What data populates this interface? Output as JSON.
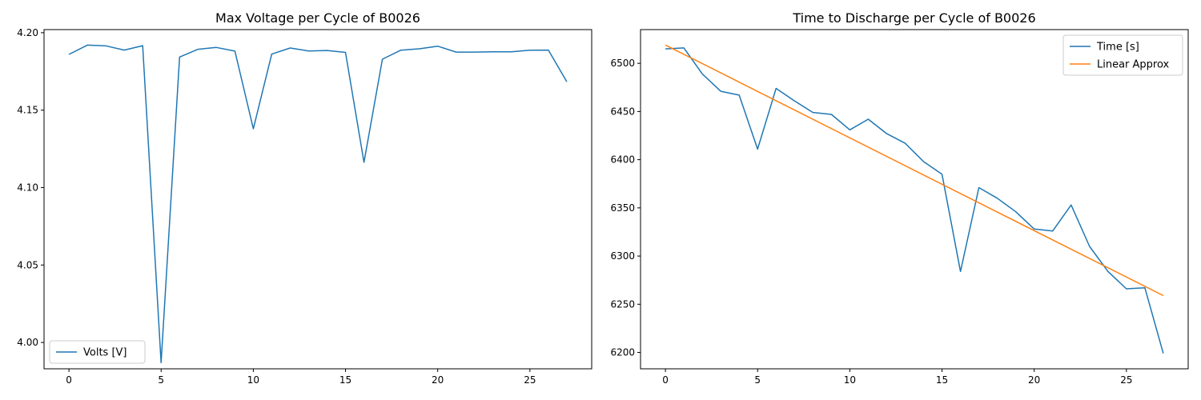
{
  "chart_data": [
    {
      "type": "line",
      "title": "Max Voltage per Cycle of B0026",
      "xlabel": "",
      "ylabel": "",
      "xlim": [
        -1.35,
        28.35
      ],
      "ylim": [
        3.983,
        4.202
      ],
      "xticks": [
        0,
        5,
        10,
        15,
        20,
        25
      ],
      "yticks": [
        4.0,
        4.05,
        4.1,
        4.15,
        4.2
      ],
      "ytick_labels": [
        "4.00",
        "4.05",
        "4.10",
        "4.15",
        "4.20"
      ],
      "grid": false,
      "legend_position": "lower left",
      "series": [
        {
          "name": "Volts [V]",
          "color": "#1f77b4",
          "x": [
            0,
            1,
            2,
            3,
            4,
            5,
            6,
            7,
            8,
            9,
            10,
            11,
            12,
            13,
            14,
            15,
            16,
            17,
            18,
            19,
            20,
            21,
            22,
            23,
            24,
            25,
            26,
            27
          ],
          "y": [
            4.186,
            4.192,
            4.1915,
            4.1888,
            4.1916,
            3.987,
            4.1843,
            4.1893,
            4.1905,
            4.1881,
            4.138,
            4.1862,
            4.1901,
            4.1882,
            4.1885,
            4.1873,
            4.1163,
            4.1829,
            4.1887,
            4.1896,
            4.1913,
            4.1875,
            4.1875,
            4.1877,
            4.1877,
            4.1887,
            4.1888,
            4.1684
          ]
        }
      ]
    },
    {
      "type": "line",
      "title": "Time to Discharge per Cycle of B0026",
      "xlabel": "",
      "ylabel": "",
      "xlim": [
        -1.35,
        28.35
      ],
      "ylim": [
        6183,
        6535
      ],
      "xticks": [
        0,
        5,
        10,
        15,
        20,
        25
      ],
      "yticks": [
        6200,
        6250,
        6300,
        6350,
        6400,
        6450,
        6500
      ],
      "ytick_labels": [
        "6200",
        "6250",
        "6300",
        "6350",
        "6400",
        "6450",
        "6500"
      ],
      "grid": false,
      "legend_position": "upper right",
      "series": [
        {
          "name": "Time [s]",
          "color": "#1f77b4",
          "x": [
            0,
            1,
            2,
            3,
            4,
            5,
            6,
            7,
            8,
            9,
            10,
            11,
            12,
            13,
            14,
            15,
            16,
            17,
            18,
            19,
            20,
            21,
            22,
            23,
            24,
            25,
            26,
            27
          ],
          "y": [
            6515,
            6516,
            6489,
            6471,
            6467,
            6411,
            6474,
            6461,
            6449,
            6447,
            6431,
            6442,
            6427,
            6417,
            6398,
            6385,
            6284,
            6371,
            6360,
            6346,
            6328,
            6326,
            6353,
            6310,
            6284,
            6266,
            6267,
            6199
          ]
        },
        {
          "name": "Linear Approx",
          "color": "#ff7f0e",
          "x": [
            0,
            27
          ],
          "y": [
            6519,
            6259
          ]
        }
      ]
    }
  ]
}
